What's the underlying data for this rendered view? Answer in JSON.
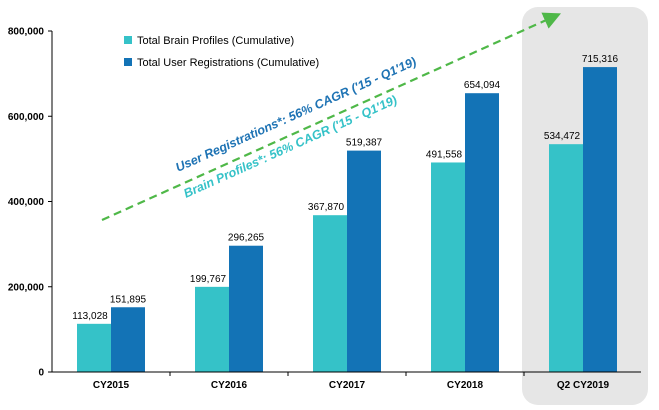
{
  "chart_data": {
    "type": "bar",
    "categories": [
      "CY2015",
      "CY2016",
      "CY2017",
      "CY2018",
      "Q2 CY2019"
    ],
    "series": [
      {
        "name": "Total Brain Profiles (Cumulative)",
        "color": "#35c2c8",
        "values": [
          113028,
          199767,
          367870,
          491558,
          534472
        ],
        "labels": [
          "113,028",
          "199,767",
          "367,870",
          "491,558",
          "534,472"
        ]
      },
      {
        "name": "Total User Registrations (Cumulative)",
        "color": "#1373b6",
        "values": [
          151895,
          296265,
          519387,
          654094,
          715316
        ],
        "labels": [
          "151,895",
          "296,265",
          "519,387",
          "654,094",
          "715,316"
        ]
      }
    ],
    "ylim": [
      0,
      800000
    ],
    "yticks": [
      0,
      200000,
      400000,
      600000,
      800000
    ],
    "ytick_labels": [
      "0",
      "200,000",
      "400,000",
      "600,000",
      "800,000"
    ],
    "legend_position": "top-left",
    "grid": false,
    "highlighted_category": "Q2 CY2019",
    "highlight_color": "#e6e6e6",
    "trend_arrow_color": "#4fb848",
    "annotations": [
      "User Registrations*: 56% CAGR ('15 - Q1'19)",
      "Brain Profiles*: 56% CAGR ('15 - Q1'19)"
    ]
  }
}
